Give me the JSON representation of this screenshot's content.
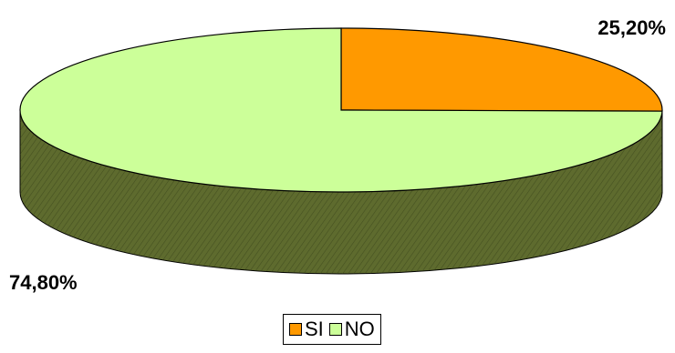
{
  "chart_data": {
    "type": "pie",
    "style": "3d",
    "slices": [
      {
        "label": "SI",
        "value": 25.2,
        "data_label": "25,20%",
        "color": "#FF9900",
        "side_color": "#7F4C00"
      },
      {
        "label": "NO",
        "value": 74.8,
        "data_label": "74,80%",
        "color": "#CCFF99",
        "side_color": "#5E6B2E"
      }
    ],
    "legend": {
      "placement": "bottom",
      "entries": [
        "SI",
        "NO"
      ]
    }
  }
}
